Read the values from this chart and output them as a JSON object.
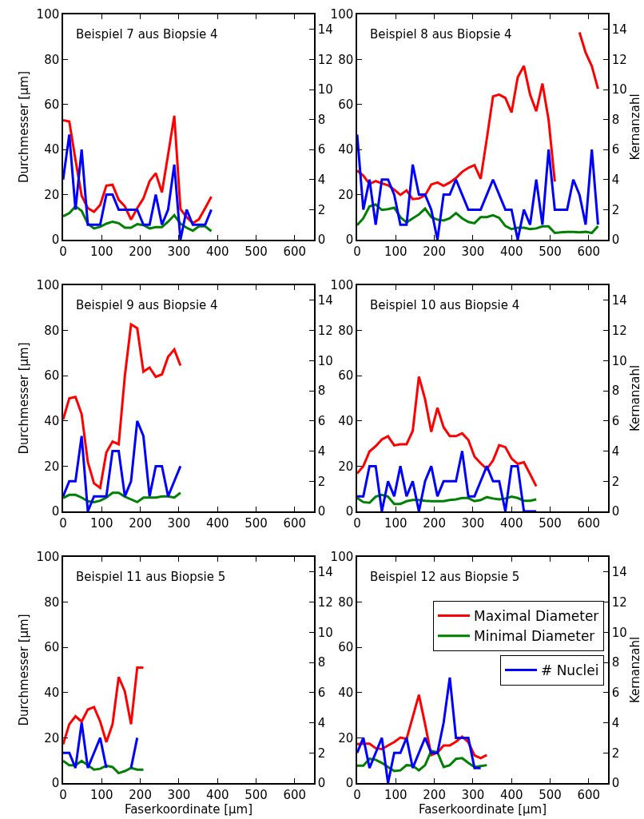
{
  "chart_data": [
    {
      "type": "line",
      "title": "Beispiel 7 aus Biopsie 4",
      "ylabel": "Durchmesser [μm]",
      "x": [
        0,
        16,
        32,
        48,
        64,
        80,
        96,
        112,
        128,
        144,
        160,
        176,
        192,
        208,
        224,
        240,
        256,
        272,
        288,
        304,
        320,
        336,
        352,
        368,
        384
      ],
      "series": [
        {
          "color": "#ff0000",
          "values": [
            53,
            52.5,
            35.5,
            19.5,
            14,
            12.4,
            15.4,
            24,
            24.4,
            17.7,
            14.8,
            8.9,
            14,
            18.3,
            26,
            29.5,
            21,
            37.8,
            55,
            13.6,
            10,
            7.3,
            9.1,
            14,
            19.1
          ]
        },
        {
          "color": "#008000",
          "values": [
            10.4,
            11.8,
            14.8,
            12.8,
            7.1,
            5,
            5.7,
            7.1,
            8,
            7.3,
            5.3,
            5.3,
            6.9,
            6.5,
            5,
            5.6,
            5.6,
            8,
            10.9,
            7.1,
            5.3,
            4,
            5.9,
            5.9,
            3.8
          ]
        },
        {
          "color": "#0000ff",
          "axis": "y2",
          "values": [
            4,
            7,
            2,
            6,
            1,
            1,
            1,
            3,
            3,
            2,
            2,
            2,
            2,
            1,
            1,
            3,
            1,
            2,
            5,
            0,
            2,
            1,
            1,
            1,
            2
          ]
        }
      ],
      "xlim": [
        0,
        650
      ],
      "xticks": [
        0,
        100,
        200,
        300,
        400,
        500,
        600
      ],
      "ylim": [
        0,
        100
      ],
      "yticks": [
        0,
        20,
        40,
        60,
        80,
        100
      ],
      "y2lim": [
        0,
        15
      ],
      "y2ticks": [
        0,
        2,
        4,
        6,
        8,
        10,
        12,
        14
      ],
      "grid": false,
      "legend": false,
      "marker": "none",
      "line_style": "solid"
    },
    {
      "type": "line",
      "title": "Beispiel 8 aus Biopsie 4",
      "y2label": "Kernanzahl",
      "x": [
        0,
        16,
        32,
        48,
        64,
        80,
        96,
        112,
        128,
        144,
        160,
        176,
        192,
        208,
        224,
        240,
        256,
        272,
        288,
        304,
        320,
        336,
        352,
        368,
        384,
        400,
        416,
        432,
        448,
        464,
        480,
        496,
        512,
        528,
        544,
        560,
        576,
        592,
        608,
        624
      ],
      "series": [
        {
          "color": "#ff0000",
          "values": [
            30.7,
            28.4,
            24.8,
            26,
            25,
            24.2,
            22.2,
            19.9,
            21.9,
            18,
            18.3,
            19.7,
            24.5,
            25.4,
            23.9,
            25.4,
            27.4,
            30.1,
            31.9,
            33.1,
            27,
            44.9,
            63.6,
            64.4,
            62.9,
            56.5,
            72.1,
            77.1,
            64.4,
            57,
            69.3,
            53.2,
            25.8,
            null,
            null,
            null,
            92,
            83,
            77,
            67
          ]
        },
        {
          "color": "#008000",
          "values": [
            6.5,
            9.5,
            14.8,
            15.6,
            13.2,
            13.6,
            14.2,
            10,
            7.7,
            9.5,
            11.2,
            13.8,
            10,
            8.9,
            8.5,
            9.5,
            11.8,
            9.5,
            7.9,
            7.3,
            10,
            10,
            10.9,
            9.7,
            6.1,
            4.7,
            5.3,
            5.3,
            4.7,
            5,
            5.9,
            5.9,
            3,
            3.3,
            3.5,
            3.5,
            3.3,
            3.5,
            3,
            6
          ]
        },
        {
          "color": "#0000ff",
          "axis": "y2",
          "values": [
            7,
            2,
            4,
            1,
            4,
            4,
            3,
            1,
            1,
            5,
            3,
            3,
            2,
            0,
            3,
            3,
            4,
            3,
            2,
            2,
            2,
            3,
            4,
            3,
            2,
            2,
            0,
            2,
            1,
            4,
            1,
            6,
            2,
            2,
            2,
            4,
            3,
            1,
            6,
            1
          ]
        }
      ],
      "xlim": [
        0,
        650
      ],
      "xticks": [
        0,
        100,
        200,
        300,
        400,
        500,
        600
      ],
      "ylim": [
        0,
        100
      ],
      "yticks": [
        0,
        20,
        40,
        60,
        80,
        100
      ],
      "y2lim": [
        0,
        15
      ],
      "y2ticks": [
        0,
        2,
        4,
        6,
        8,
        10,
        12,
        14
      ],
      "grid": false,
      "legend": false,
      "marker": "none",
      "line_style": "solid"
    },
    {
      "type": "line",
      "title": "Beispiel 9 aus Biopsie 4",
      "ylabel": "Durchmesser [μm]",
      "x": [
        0,
        16,
        32,
        48,
        64,
        80,
        96,
        112,
        128,
        144,
        160,
        176,
        192,
        208,
        224,
        240,
        256,
        272,
        288,
        304
      ],
      "series": [
        {
          "color": "#ff0000",
          "values": [
            40.6,
            50,
            50.6,
            43,
            21.8,
            12.4,
            10.4,
            26.1,
            30.9,
            29.7,
            60,
            82.7,
            81,
            61.8,
            63.6,
            59.5,
            60.6,
            68.4,
            71.6,
            64.5
          ]
        },
        {
          "color": "#008000",
          "values": [
            5.9,
            7.3,
            7.3,
            6.1,
            4.5,
            4.1,
            4.7,
            6.1,
            8.2,
            8.2,
            6.5,
            5.3,
            4.1,
            6.1,
            6.1,
            6.1,
            6.6,
            6.6,
            6.1,
            8.2
          ]
        },
        {
          "color": "#0000ff",
          "axis": "y2",
          "values": [
            1,
            2,
            2,
            5,
            0,
            1,
            1,
            1,
            4,
            4,
            1,
            2,
            6,
            5,
            1,
            3,
            3,
            1,
            2,
            3
          ]
        }
      ],
      "xlim": [
        0,
        650
      ],
      "xticks": [
        0,
        100,
        200,
        300,
        400,
        500,
        600
      ],
      "ylim": [
        0,
        100
      ],
      "yticks": [
        0,
        20,
        40,
        60,
        80,
        100
      ],
      "y2lim": [
        0,
        15
      ],
      "y2ticks": [
        0,
        2,
        4,
        6,
        8,
        10,
        12,
        14
      ],
      "grid": false,
      "legend": false,
      "marker": "none",
      "line_style": "solid"
    },
    {
      "type": "line",
      "title": "Beispiel 10 aus Biopsie 4",
      "y2label": "Kernanzahl",
      "x": [
        0,
        16,
        32,
        48,
        64,
        80,
        96,
        112,
        128,
        144,
        160,
        176,
        192,
        208,
        224,
        240,
        256,
        272,
        288,
        304,
        320,
        336,
        352,
        368,
        384,
        400,
        416,
        432,
        448,
        464
      ],
      "series": [
        {
          "color": "#ff0000",
          "values": [
            16.8,
            20,
            26.5,
            28.8,
            31.8,
            33.2,
            29.2,
            29.7,
            29.7,
            35.6,
            59.6,
            49.6,
            35.2,
            45.8,
            37.2,
            33.3,
            33.3,
            34.5,
            31.6,
            24.2,
            21.3,
            18.7,
            22.5,
            29.3,
            28.4,
            23.4,
            21,
            21.7,
            16.5,
            11.1
          ]
        },
        {
          "color": "#008000",
          "values": [
            5.9,
            4.1,
            3.8,
            6.5,
            7.3,
            6.5,
            3.3,
            3.3,
            4.5,
            5,
            5,
            4.7,
            4.5,
            4.5,
            4.5,
            5,
            5.3,
            5.9,
            5.9,
            4.5,
            5,
            6.3,
            5.7,
            5.3,
            5.7,
            6.5,
            5.9,
            4.7,
            4.7,
            5.3
          ]
        },
        {
          "color": "#0000ff",
          "axis": "y2",
          "values": [
            1,
            1,
            3,
            3,
            0,
            2,
            1,
            3,
            1,
            2,
            0,
            2,
            3,
            1,
            2,
            2,
            2,
            4,
            1,
            1,
            2,
            3,
            2,
            2,
            0,
            3,
            3,
            0,
            0,
            0
          ]
        }
      ],
      "xlim": [
        0,
        650
      ],
      "xticks": [
        0,
        100,
        200,
        300,
        400,
        500,
        600
      ],
      "ylim": [
        0,
        100
      ],
      "yticks": [
        0,
        20,
        40,
        60,
        80,
        100
      ],
      "y2lim": [
        0,
        15
      ],
      "y2ticks": [
        0,
        2,
        4,
        6,
        8,
        10,
        12,
        14
      ],
      "grid": false,
      "legend": false,
      "marker": "none",
      "line_style": "solid"
    },
    {
      "type": "line",
      "title": "Beispiel 11 aus Biopsie 5",
      "xlabel": "Faserkoordinate [μm]",
      "ylabel": "Durchmesser [μm]",
      "x": [
        0,
        16,
        32,
        48,
        64,
        80,
        96,
        112,
        128,
        144,
        160,
        176,
        192,
        208
      ],
      "series": [
        {
          "color": "#ff0000",
          "values": [
            17.1,
            26,
            29.5,
            27.2,
            32.5,
            33.6,
            27.2,
            18.1,
            26,
            46.9,
            40.5,
            26,
            51.1,
            51.1
          ]
        },
        {
          "color": "#008000",
          "values": [
            9.8,
            7.9,
            7.9,
            9.8,
            7.9,
            5.9,
            6.3,
            7.7,
            7.1,
            4.4,
            5.3,
            6.7,
            5.9,
            5.9
          ]
        },
        {
          "color": "#0000ff",
          "axis": "y2",
          "values": [
            2,
            2,
            1,
            4,
            1,
            2,
            3,
            1,
            null,
            null,
            null,
            1,
            3,
            null
          ]
        }
      ],
      "xlim": [
        0,
        650
      ],
      "xticks": [
        0,
        100,
        200,
        300,
        400,
        500,
        600
      ],
      "ylim": [
        0,
        100
      ],
      "yticks": [
        0,
        20,
        40,
        60,
        80,
        100
      ],
      "y2lim": [
        0,
        15
      ],
      "y2ticks": [
        0,
        2,
        4,
        6,
        8,
        10,
        12,
        14
      ],
      "grid": false,
      "legend": false,
      "marker": "none",
      "line_style": "solid"
    },
    {
      "type": "line",
      "title": "Beispiel 12 aus Biopsie 5",
      "xlabel": "Faserkoordinate [μm]",
      "y2label": "Kernanzahl",
      "x": [
        0,
        16,
        32,
        48,
        64,
        80,
        96,
        112,
        128,
        144,
        160,
        176,
        192,
        208,
        224,
        240,
        256,
        272,
        288,
        304,
        320,
        336
      ],
      "series": [
        {
          "name": "Maximal Diameter",
          "color": "#ff0000",
          "values": [
            17.2,
            17.4,
            17.4,
            15.4,
            15,
            16.6,
            18.1,
            20.1,
            19.5,
            29.2,
            39,
            26,
            12.4,
            13.4,
            16.6,
            16.6,
            18.3,
            20.5,
            18.1,
            12.2,
            11,
            12.4
          ]
        },
        {
          "name": "Minimal Diameter",
          "color": "#008000",
          "values": [
            7.7,
            7.7,
            10.7,
            10.3,
            8.9,
            7.1,
            5.3,
            5.6,
            7.9,
            7.7,
            5.6,
            7.9,
            14.2,
            13.6,
            7.1,
            7.9,
            10.7,
            11,
            8.9,
            7.1,
            7.5,
            7.9
          ]
        },
        {
          "name": "# Nuclei",
          "color": "#0000ff",
          "axis": "y2",
          "values": [
            2,
            3,
            1,
            2,
            3,
            0,
            2,
            2,
            3,
            1,
            2,
            3,
            2,
            2,
            4,
            7,
            3,
            3,
            3,
            1,
            1,
            null
          ]
        }
      ],
      "xlim": [
        0,
        650
      ],
      "xticks": [
        0,
        100,
        200,
        300,
        400,
        500,
        600
      ],
      "ylim": [
        0,
        100
      ],
      "yticks": [
        0,
        20,
        40,
        60,
        80,
        100
      ],
      "y2lim": [
        0,
        15
      ],
      "y2ticks": [
        0,
        2,
        4,
        6,
        8,
        10,
        12,
        14
      ],
      "grid": false,
      "legend": "top right",
      "marker": "none",
      "line_style": "solid"
    }
  ]
}
